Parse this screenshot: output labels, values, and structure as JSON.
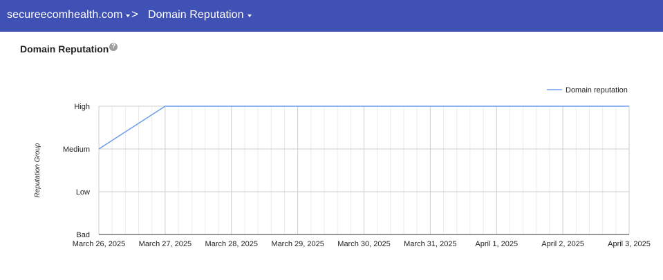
{
  "header": {
    "domain": "secureecomhealth.com",
    "separator": ">",
    "page": "Domain Reputation",
    "background_color": "#3f51b5"
  },
  "section": {
    "title": "Domain Reputation",
    "help_icon": "?"
  },
  "chart_data": {
    "type": "line",
    "ylabel": "Reputation Group",
    "y_categories": [
      "Bad",
      "Low",
      "Medium",
      "High"
    ],
    "x": [
      "March 26, 2025",
      "March 27, 2025",
      "March 28, 2025",
      "March 29, 2025",
      "March 30, 2025",
      "March 31, 2025",
      "April 1, 2025",
      "April 2, 2025",
      "April 3, 2025"
    ],
    "series": [
      {
        "name": "Domain reputation",
        "color": "#6d9eeb",
        "values": [
          "Medium",
          "High",
          "High",
          "High",
          "High",
          "High",
          "High",
          "High",
          "High"
        ]
      }
    ],
    "legend_position": "top-right",
    "grid": true
  }
}
